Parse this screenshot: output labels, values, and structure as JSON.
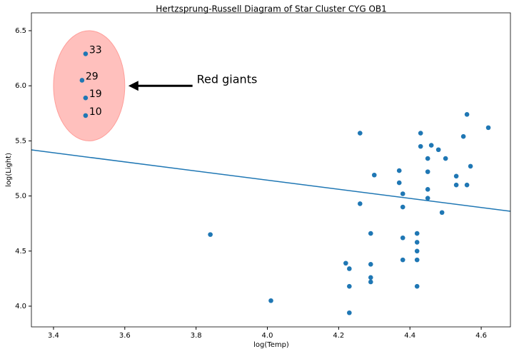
{
  "chart_data": {
    "type": "scatter",
    "title": "Hertzsprung-Russell Diagram of Star Cluster CYG OB1",
    "x_label": "log(Temp)",
    "y_label": "log(Light)",
    "xlim": [
      3.338,
      4.682
    ],
    "ylim": [
      3.812,
      6.662
    ],
    "xticks": [
      3.4,
      3.6,
      3.8,
      {
        "value": 4.0,
        "label": "4.0"
      },
      4.2,
      4.4,
      4.6
    ],
    "yticks": [
      {
        "value": 4.0,
        "label": "4.0"
      },
      4.5,
      {
        "value": 5.0,
        "label": "5.0"
      },
      5.5,
      {
        "value": 6.0,
        "label": "6.0"
      },
      6.5
    ],
    "series": [
      {
        "name": "stars",
        "color": "#1f77b4",
        "x": [
          3.49,
          3.48,
          3.49,
          3.49,
          4.26,
          4.43,
          4.56,
          4.62,
          4.55,
          4.43,
          4.46,
          4.48,
          4.45,
          4.5,
          4.57,
          4.37,
          4.45,
          4.3,
          4.53,
          4.37,
          4.53,
          4.56,
          4.45,
          4.38,
          4.45,
          4.26,
          4.38,
          4.49,
          3.84,
          4.29,
          4.42,
          4.38,
          4.42,
          4.42,
          4.38,
          4.42,
          4.22,
          4.29,
          4.23,
          4.29,
          4.29,
          4.23,
          4.42,
          4.01,
          4.23
        ],
        "values": [
          6.29,
          6.05,
          5.89,
          5.73,
          5.57,
          5.57,
          5.74,
          5.62,
          5.54,
          5.45,
          5.46,
          5.42,
          5.34,
          5.34,
          5.27,
          5.23,
          5.22,
          5.19,
          5.18,
          5.12,
          5.1,
          5.1,
          5.06,
          5.02,
          4.98,
          4.93,
          4.9,
          4.85,
          4.65,
          4.66,
          4.66,
          4.62,
          4.58,
          4.5,
          4.42,
          4.42,
          4.39,
          4.38,
          4.34,
          4.26,
          4.22,
          4.18,
          4.18,
          4.05,
          3.94
        ],
        "point_labels": [
          "33",
          "29",
          "19",
          "10",
          null,
          null,
          null,
          null,
          null,
          null,
          null,
          null,
          null,
          null,
          null,
          null,
          null,
          null,
          null,
          null,
          null,
          null,
          null,
          null,
          null,
          null,
          null,
          null,
          null,
          null,
          null,
          null,
          null,
          null,
          null,
          null,
          null,
          null,
          null,
          null,
          null,
          null,
          null,
          null,
          null
        ]
      },
      {
        "name": "fit",
        "color": "#1f77b4",
        "x": [
          3.338,
          4.682
        ],
        "values": [
          5.418,
          4.861
        ]
      }
    ],
    "highlight": {
      "color": "#ff9e9a",
      "center": [
        3.5,
        6.0
      ],
      "width": 0.2,
      "height": 1.0
    },
    "annotation": {
      "text": "Red giants",
      "x": 3.79,
      "y": 6.0,
      "arrow_x": 3.61
    }
  }
}
